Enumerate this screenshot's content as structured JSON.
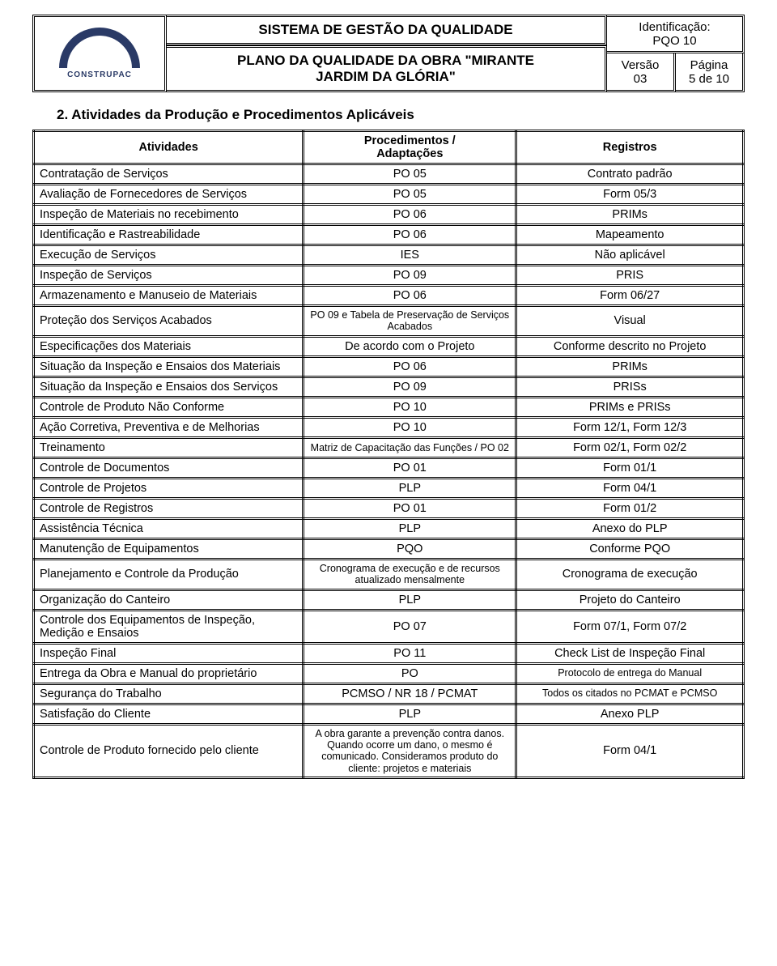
{
  "header": {
    "system_title": "SISTEMA DE GESTÃO DA QUALIDADE",
    "plan_title_l1": "PLANO DA QUALIDADE DA OBRA \"MIRANTE",
    "plan_title_l2": "JARDIM DA GLÓRIA\"",
    "ident_label": "Identificação:",
    "ident_value": "PQO 10",
    "versao_label": "Versão",
    "versao_value": "03",
    "pagina_label": "Página",
    "pagina_value": "5 de 10",
    "logo_text": "CONSTRUPAC"
  },
  "section_title": "2.  Atividades da Produção e Procedimentos Aplicáveis",
  "table": {
    "headers": {
      "c1": "Atividades",
      "c2_l1": "Procedimentos /",
      "c2_l2": "Adaptações",
      "c3": "Registros"
    },
    "rows": [
      {
        "a": "Contratação de Serviços",
        "p": "PO 05",
        "r": "Contrato padrão"
      },
      {
        "a": "Avaliação de Fornecedores de Serviços",
        "p": "PO 05",
        "r": "Form 05/3"
      },
      {
        "a": "Inspeção de Materiais no recebimento",
        "p": "PO 06",
        "r": "PRIMs"
      },
      {
        "a": "Identificação e Rastreabilidade",
        "p": "PO 06",
        "r": "Mapeamento"
      },
      {
        "a": "Execução de Serviços",
        "p": "IES",
        "r": "Não aplicável"
      },
      {
        "a": "Inspeção de Serviços",
        "p": "PO 09",
        "r": "PRIS"
      },
      {
        "a": "Armazenamento e Manuseio de Materiais",
        "p": "PO 06",
        "r": "Form 06/27"
      },
      {
        "a": "Proteção dos Serviços Acabados",
        "p": "PO 09 e Tabela de Preservação de Serviços Acabados",
        "r": "Visual",
        "psmall": true
      },
      {
        "a": "Especificações dos Materiais",
        "p": "De acordo com o Projeto",
        "r": "Conforme descrito no Projeto"
      },
      {
        "a": "Situação da Inspeção e Ensaios dos Materiais",
        "p": "PO 06",
        "r": "PRIMs"
      },
      {
        "a": "Situação da Inspeção e Ensaios dos Serviços",
        "p": "PO 09",
        "r": "PRISs"
      },
      {
        "a": "Controle de Produto Não Conforme",
        "p": "PO 10",
        "r": "PRIMs e PRISs"
      },
      {
        "a": "Ação Corretiva, Preventiva e de Melhorias",
        "p": "PO 10",
        "r": "Form 12/1, Form 12/3"
      },
      {
        "a": "Treinamento",
        "p": "Matriz de Capacitação das Funções / PO 02",
        "r": "Form 02/1, Form 02/2",
        "psmall": true
      },
      {
        "a": "Controle de Documentos",
        "p": "PO 01",
        "r": "Form 01/1"
      },
      {
        "a": "Controle de Projetos",
        "p": "PLP",
        "r": "Form 04/1"
      },
      {
        "a": "Controle de Registros",
        "p": "PO 01",
        "r": "Form 01/2"
      },
      {
        "a": "Assistência Técnica",
        "p": "PLP",
        "r": "Anexo do PLP"
      },
      {
        "a": "Manutenção de Equipamentos",
        "p": "PQO",
        "r": "Conforme PQO"
      },
      {
        "a": "Planejamento e Controle da Produção",
        "p": "Cronograma de execução e de recursos atualizado mensalmente",
        "r": "Cronograma de execução",
        "psmall": true
      },
      {
        "a": "Organização do Canteiro",
        "p": "PLP",
        "r": "Projeto do Canteiro"
      },
      {
        "a": "Controle dos Equipamentos de Inspeção, Medição e Ensaios",
        "p": "PO 07",
        "r": "Form 07/1, Form 07/2"
      },
      {
        "a": "Inspeção Final",
        "p": "PO 11",
        "r": "Check List de Inspeção Final"
      },
      {
        "a": "Entrega da Obra e Manual do proprietário",
        "p": "PO",
        "r": "Protocolo de entrega do Manual",
        "rsmall": true
      },
      {
        "a": "Segurança do Trabalho",
        "p": "PCMSO / NR 18 / PCMAT",
        "r": "Todos os citados no PCMAT e PCMSO",
        "rsmall": true
      },
      {
        "a": "Satisfação do Cliente",
        "p": "PLP",
        "r": "Anexo PLP"
      },
      {
        "a": "Controle de Produto fornecido pelo cliente",
        "p": "A obra garante a prevenção contra danos. Quando ocorre um dano, o mesmo é comunicado. Consideramos produto do cliente: projetos e materiais",
        "r": "Form 04/1",
        "psmall": true
      }
    ]
  },
  "colors": {
    "border": "#000000",
    "logo": "#2a3a66",
    "bg": "#ffffff"
  }
}
